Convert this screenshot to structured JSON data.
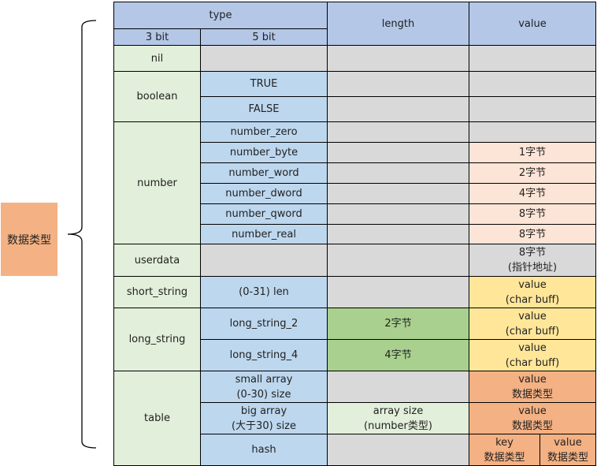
{
  "side_label": "数据类型",
  "header": {
    "type": "type",
    "bit3": "3 bit",
    "bit5": "5 bit",
    "length": "length",
    "value": "value"
  },
  "rows": {
    "nil": "nil",
    "boolean": {
      "label": "boolean",
      "true": "TRUE",
      "false": "FALSE"
    },
    "number": {
      "label": "number",
      "zero": "number_zero",
      "byte": "number_byte",
      "word": "number_word",
      "dword": "number_dword",
      "qword": "number_qword",
      "real": "number_real",
      "byte_value": "1字节",
      "word_value": "2字节",
      "dword_value": "4字节",
      "qword_value": "8字节",
      "real_value": "8字节"
    },
    "userdata": {
      "label": "userdata",
      "value": "8字节\n(指针地址)"
    },
    "short_string": {
      "label": "short_string",
      "sub": "(0-31) len",
      "value": "value\n(char buff)"
    },
    "long_string": {
      "label": "long_string",
      "sub2": "long_string_2",
      "len2": "2字节",
      "value2": "value\n(char buff)",
      "sub4": "long_string_4",
      "len4": "4字节",
      "value4": "value\n(char buff)"
    },
    "table": {
      "label": "table",
      "small": "small array\n(0-30) size",
      "small_value": "value\n数据类型",
      "big": "big array\n(大于30) size",
      "big_length": "array size\n(number类型)",
      "big_value": "value\n数据类型",
      "hash": "hash",
      "hash_key": "key\n数据类型",
      "hash_value": "value\n数据类型"
    }
  },
  "colors": {
    "header": "#b4c7e7",
    "type3": "#e2efda",
    "empty": "#d9d9d9",
    "type5": "#bdd7ee",
    "number_value": "#fce4d6",
    "string_value": "#ffe699",
    "length": "#a9d08e",
    "table_value": "#f4b183"
  }
}
